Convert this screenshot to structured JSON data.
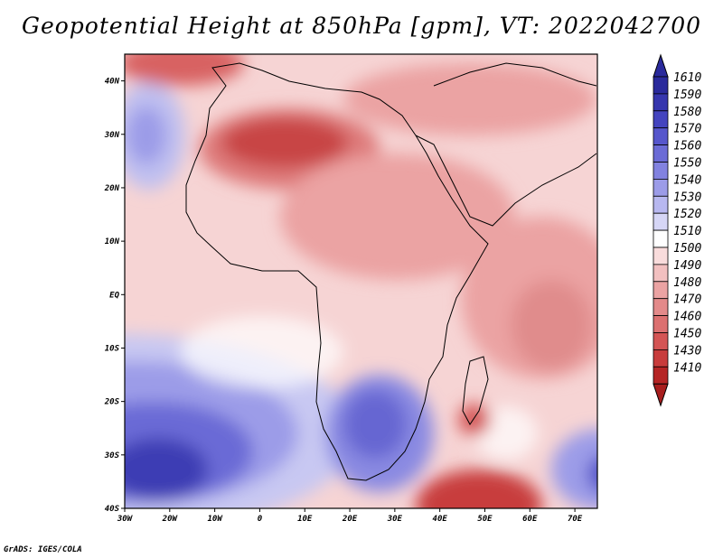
{
  "title": "Geopotential Height at 850hPa [gpm], VT: 2022042700",
  "credit": "GrADS: IGES/COLA",
  "map": {
    "lon_range": [
      -30,
      75
    ],
    "lat_range": [
      -40,
      45
    ],
    "lat_ticks": [
      {
        "lat": 40,
        "label": "40N"
      },
      {
        "lat": 30,
        "label": "30N"
      },
      {
        "lat": 20,
        "label": "20N"
      },
      {
        "lat": 10,
        "label": "10N"
      },
      {
        "lat": 0,
        "label": "EQ"
      },
      {
        "lat": -10,
        "label": "10S"
      },
      {
        "lat": -20,
        "label": "20S"
      },
      {
        "lat": -30,
        "label": "30S"
      },
      {
        "lat": -40,
        "label": "40S"
      }
    ],
    "lon_ticks": [
      {
        "lon": -30,
        "label": "30W"
      },
      {
        "lon": -20,
        "label": "20W"
      },
      {
        "lon": -10,
        "label": "10W"
      },
      {
        "lon": 0,
        "label": "0"
      },
      {
        "lon": 10,
        "label": "10E"
      },
      {
        "lon": 20,
        "label": "20E"
      },
      {
        "lon": 30,
        "label": "30E"
      },
      {
        "lon": 40,
        "label": "40E"
      },
      {
        "lon": 50,
        "label": "50E"
      },
      {
        "lon": 60,
        "label": "60E"
      },
      {
        "lon": 70,
        "label": "70E"
      }
    ]
  },
  "colorbar": {
    "levels": [
      {
        "label": "1610",
        "color": "#2a2a9c"
      },
      {
        "label": "1590",
        "color": "#3636ae"
      },
      {
        "label": "1580",
        "color": "#4444bf"
      },
      {
        "label": "1570",
        "color": "#5656cc"
      },
      {
        "label": "1560",
        "color": "#6b6bd6"
      },
      {
        "label": "1550",
        "color": "#8282e0"
      },
      {
        "label": "1540",
        "color": "#9c9ce8"
      },
      {
        "label": "1530",
        "color": "#b8b8f0"
      },
      {
        "label": "1520",
        "color": "#d6d6f6"
      },
      {
        "label": "1510",
        "color": "#ffffff"
      },
      {
        "label": "1500",
        "color": "#f9dcdc"
      },
      {
        "label": "1490",
        "color": "#f2c0c0"
      },
      {
        "label": "1480",
        "color": "#eba3a3"
      },
      {
        "label": "1470",
        "color": "#e38a8a"
      },
      {
        "label": "1460",
        "color": "#dc7070"
      },
      {
        "label": "1450",
        "color": "#d45555"
      },
      {
        "label": "1430",
        "color": "#c83c3c"
      },
      {
        "label": "1410",
        "color": "#b52525"
      }
    ],
    "top_arrow_color": "#2a2a9c",
    "bottom_arrow_color": "#a81e1e"
  }
}
